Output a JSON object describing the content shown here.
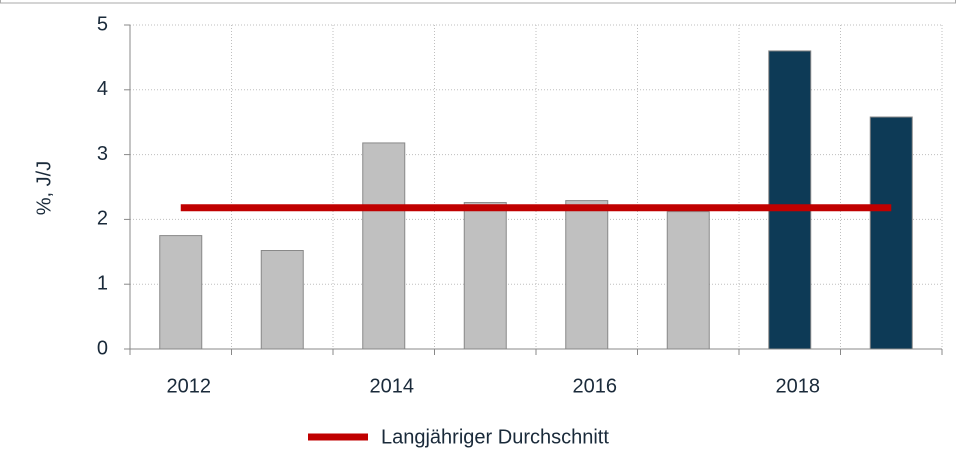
{
  "chart_data": {
    "type": "bar",
    "categories": [
      "2012",
      null,
      "2014",
      null,
      "2016",
      null,
      "2018",
      null
    ],
    "values": [
      1.75,
      1.52,
      3.18,
      2.26,
      2.29,
      2.12,
      4.6,
      3.58
    ],
    "colors": [
      "#c0c0c0",
      "#c0c0c0",
      "#c0c0c0",
      "#c0c0c0",
      "#c0c0c0",
      "#c0c0c0",
      "#0d3a56",
      "#0d3a56"
    ],
    "average": {
      "name": "Langjähriger Durchschnitt",
      "value": 2.18,
      "color": "#c00000"
    },
    "y_label": "%, J/J",
    "ylim": [
      0,
      5
    ],
    "yticks": [
      0,
      1,
      2,
      3,
      4,
      5
    ],
    "grid": true,
    "legend": "bottom"
  }
}
